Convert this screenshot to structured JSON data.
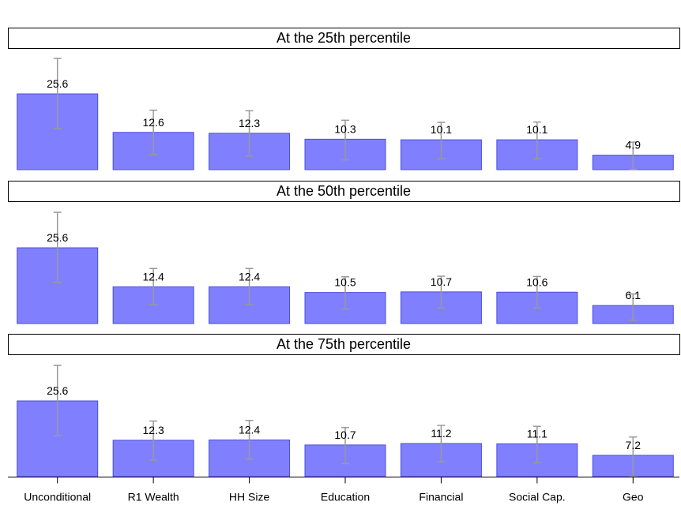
{
  "chart_data": {
    "type": "bar",
    "categories": [
      "Unconditional",
      "R1 Wealth",
      "HH Size",
      "Education",
      "Financial",
      "Social Cap.",
      "Geo"
    ],
    "ylim": [
      0,
      30
    ],
    "bar_color": "#8080ff",
    "bar_edge_color": "#4b4be0",
    "errorbar_color": "#999999",
    "panels": [
      {
        "title": "At the 25th percentile",
        "values": [
          25.6,
          12.6,
          12.3,
          10.3,
          10.1,
          10.1,
          4.9
        ],
        "labels": [
          "25.6",
          "12.6",
          "12.3",
          "10.3",
          "10.1",
          "10.1",
          "4.9"
        ],
        "ci_low": [
          13.9,
          5.1,
          4.6,
          3.3,
          3.7,
          3.7,
          0.0
        ],
        "ci_high": [
          37.6,
          20.1,
          19.9,
          16.7,
          16.0,
          16.1,
          9.3
        ]
      },
      {
        "title": "At the 50th percentile",
        "values": [
          25.6,
          12.4,
          12.4,
          10.5,
          10.7,
          10.6,
          6.1
        ],
        "labels": [
          "25.6",
          "12.4",
          "12.4",
          "10.5",
          "10.7",
          "10.6",
          "6.1"
        ],
        "ci_low": [
          13.9,
          6.4,
          6.4,
          4.9,
          5.3,
          5.3,
          1.1
        ],
        "ci_high": [
          37.6,
          18.6,
          18.6,
          15.8,
          16.0,
          15.9,
          10.0
        ]
      },
      {
        "title": "At the 75th percentile",
        "values": [
          25.6,
          12.3,
          12.4,
          10.7,
          11.2,
          11.1,
          7.2
        ],
        "labels": [
          "25.6",
          "12.3",
          "12.4",
          "10.7",
          "11.2",
          "11.1",
          "7.2"
        ],
        "ci_low": [
          13.9,
          5.6,
          5.9,
          4.4,
          5.0,
          4.7,
          0.0
        ],
        "ci_high": [
          37.6,
          18.8,
          19.0,
          16.6,
          17.3,
          17.0,
          13.4
        ]
      }
    ]
  }
}
